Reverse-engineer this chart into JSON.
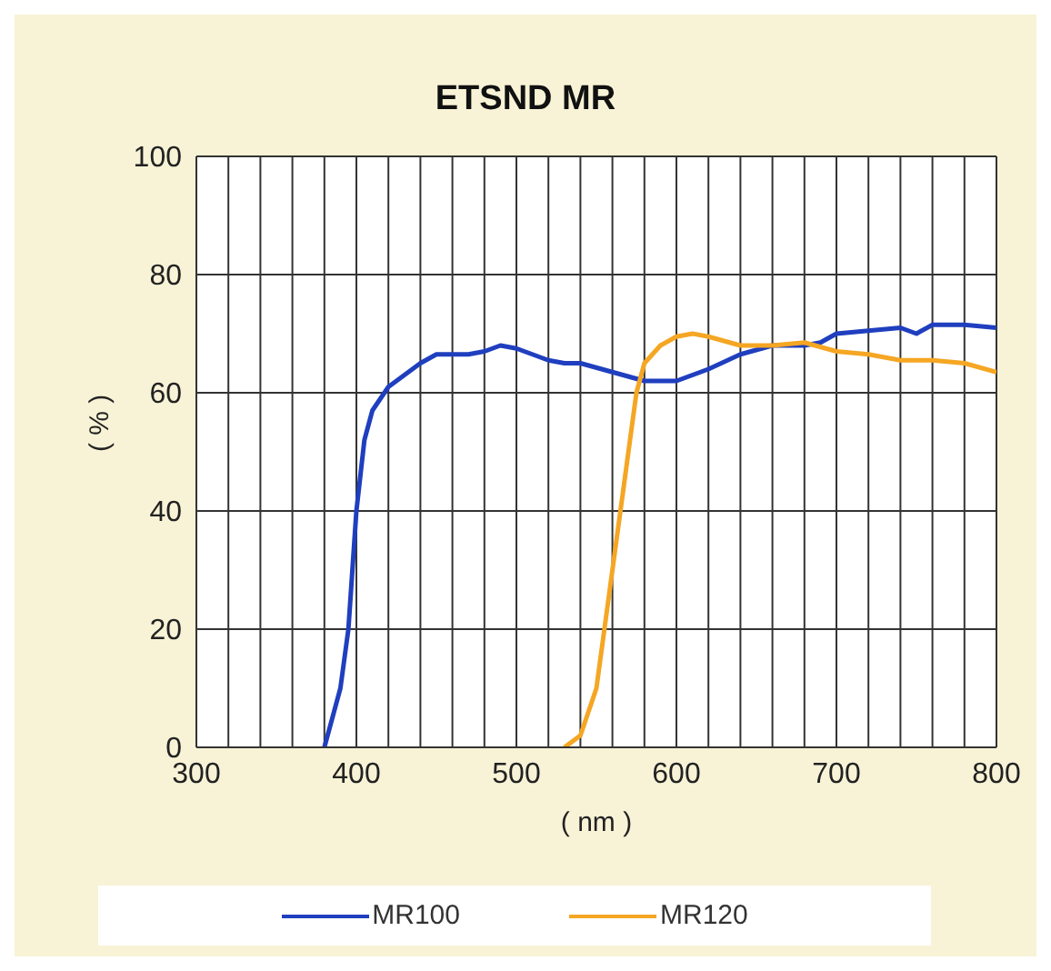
{
  "chart_data": {
    "type": "line",
    "title": "ETSND MR",
    "xlabel": "( nm )",
    "ylabel": "( % )",
    "xlim": [
      300,
      800
    ],
    "ylim": [
      0,
      100
    ],
    "xticks": [
      300,
      {
        "value": 320,
        "label": null
      },
      {
        "value": 340,
        "label": null
      },
      {
        "value": 360,
        "label": null
      },
      {
        "value": 380,
        "label": null
      },
      400,
      {
        "value": 420,
        "label": null
      },
      {
        "value": 440,
        "label": null
      },
      {
        "value": 460,
        "label": null
      },
      {
        "value": 480,
        "label": null
      },
      500,
      {
        "value": 520,
        "label": null
      },
      {
        "value": 540,
        "label": null
      },
      {
        "value": 560,
        "label": null
      },
      {
        "value": 580,
        "label": null
      },
      600,
      {
        "value": 620,
        "label": null
      },
      {
        "value": 640,
        "label": null
      },
      {
        "value": 660,
        "label": null
      },
      {
        "value": 680,
        "label": null
      },
      700,
      {
        "value": 720,
        "label": null
      },
      {
        "value": 740,
        "label": null
      },
      {
        "value": 760,
        "label": null
      },
      {
        "value": 780,
        "label": null
      },
      800
    ],
    "yticks": [
      0,
      20,
      40,
      60,
      80,
      100
    ],
    "grid": true,
    "legend": "bottom",
    "marker": "none",
    "line_style": "solid",
    "series": [
      {
        "name": "MR100",
        "color": "#1f3fbf",
        "x": [
          380,
          390,
          395,
          400,
          405,
          410,
          420,
          430,
          440,
          450,
          470,
          480,
          490,
          500,
          520,
          530,
          540,
          560,
          580,
          600,
          620,
          640,
          660,
          680,
          690,
          700,
          720,
          740,
          750,
          760,
          780,
          800
        ],
        "values": [
          0,
          10,
          20,
          40,
          52,
          57,
          61,
          63,
          65,
          66.5,
          66.5,
          67,
          68,
          67.5,
          65.5,
          65,
          65,
          63.5,
          62,
          62,
          64,
          66.5,
          68,
          68,
          68.5,
          70,
          70.5,
          71,
          70,
          71.5,
          71.5,
          71
        ]
      },
      {
        "name": "MR120",
        "color": "#f5a623",
        "x": [
          530,
          540,
          550,
          560,
          570,
          575,
          580,
          590,
          600,
          610,
          620,
          640,
          660,
          680,
          700,
          720,
          740,
          760,
          780,
          800
        ],
        "values": [
          0,
          2,
          10,
          30,
          50,
          60,
          65,
          68,
          69.5,
          70,
          69.5,
          68,
          68,
          68.5,
          67,
          66.5,
          65.5,
          65.5,
          65,
          63.5
        ]
      }
    ]
  }
}
